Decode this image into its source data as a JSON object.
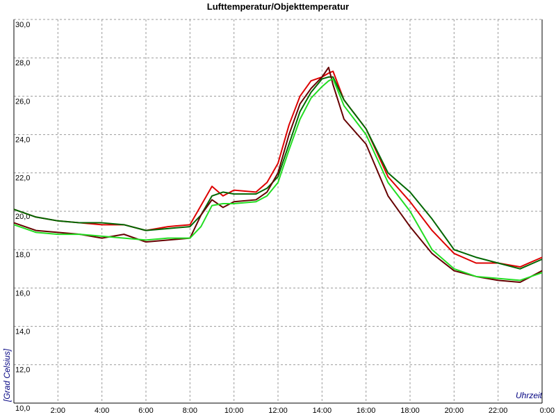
{
  "chart_data": {
    "type": "line",
    "title": "Lufttemperatur/Objekttemperatur",
    "x_label": "Uhrzeit",
    "y_label": "[Grad Celsius]",
    "x": [
      0,
      1,
      2,
      3,
      4,
      5,
      6,
      7,
      8,
      8.5,
      9,
      9.5,
      10,
      11,
      11.5,
      12,
      12.5,
      13,
      13.5,
      14,
      14.3,
      14.5,
      15,
      16,
      17,
      18,
      19,
      20,
      21,
      22,
      23,
      24
    ],
    "series": [
      {
        "color": "#dd0000",
        "values": [
          20.1,
          19.7,
          19.5,
          19.4,
          19.3,
          19.3,
          19.0,
          19.2,
          19.3,
          20.3,
          21.3,
          20.8,
          21.1,
          21.0,
          21.5,
          22.5,
          24.5,
          26.0,
          26.8,
          27.0,
          27.2,
          27.3,
          25.8,
          24.3,
          21.8,
          20.5,
          19.0,
          17.8,
          17.3,
          17.3,
          17.1,
          17.6
        ]
      },
      {
        "color": "#006600",
        "values": [
          20.1,
          19.7,
          19.5,
          19.4,
          19.4,
          19.3,
          19.0,
          19.1,
          19.2,
          19.8,
          20.8,
          21.0,
          20.9,
          20.9,
          21.2,
          21.8,
          23.5,
          25.2,
          26.2,
          26.9,
          27.0,
          27.0,
          25.8,
          24.3,
          22.0,
          21.0,
          19.6,
          18.0,
          17.6,
          17.3,
          17.0,
          17.5
        ]
      },
      {
        "color": "#660000",
        "values": [
          19.4,
          19.0,
          18.9,
          18.8,
          18.6,
          18.8,
          18.4,
          18.5,
          18.6,
          19.8,
          20.6,
          20.2,
          20.5,
          20.6,
          21.0,
          22.0,
          24.0,
          25.6,
          26.4,
          27.0,
          27.5,
          26.6,
          24.8,
          23.5,
          20.8,
          19.2,
          17.8,
          16.9,
          16.6,
          16.4,
          16.3,
          16.9
        ]
      },
      {
        "color": "#22dd22",
        "values": [
          19.3,
          18.9,
          18.8,
          18.8,
          18.7,
          18.6,
          18.5,
          18.6,
          18.6,
          19.2,
          20.3,
          20.4,
          20.4,
          20.5,
          20.8,
          21.5,
          23.2,
          24.8,
          25.9,
          26.5,
          26.8,
          26.9,
          25.5,
          24.0,
          21.5,
          20.0,
          18.0,
          17.0,
          16.6,
          16.5,
          16.4,
          16.8
        ]
      }
    ],
    "xlim": [
      0,
      24
    ],
    "xticks": [
      {
        "value": 2,
        "label": "2:00"
      },
      {
        "value": 4,
        "label": "4:00"
      },
      {
        "value": 6,
        "label": "6:00"
      },
      {
        "value": 8,
        "label": "8:00"
      },
      {
        "value": 10,
        "label": "10:00"
      },
      {
        "value": 12,
        "label": "12:00"
      },
      {
        "value": 14,
        "label": "14:00"
      },
      {
        "value": 16,
        "label": "16:00"
      },
      {
        "value": 18,
        "label": "18:00"
      },
      {
        "value": 20,
        "label": "20:00"
      },
      {
        "value": 22,
        "label": "22:00"
      },
      {
        "value": 24,
        "label": "0:00"
      }
    ],
    "ylim": [
      10,
      30
    ],
    "yticks": [
      {
        "value": 10,
        "label": "10,0"
      },
      {
        "value": 12,
        "label": "12,0"
      },
      {
        "value": 14,
        "label": "14,0"
      },
      {
        "value": 16,
        "label": "16,0"
      },
      {
        "value": 18,
        "label": "18,0"
      },
      {
        "value": 20,
        "label": "20,0"
      },
      {
        "value": 22,
        "label": "22,0"
      },
      {
        "value": 24,
        "label": "24,0"
      },
      {
        "value": 26,
        "label": "26,0"
      },
      {
        "value": 28,
        "label": "28,0"
      },
      {
        "value": 30,
        "label": "30,0"
      }
    ],
    "grid": true
  }
}
